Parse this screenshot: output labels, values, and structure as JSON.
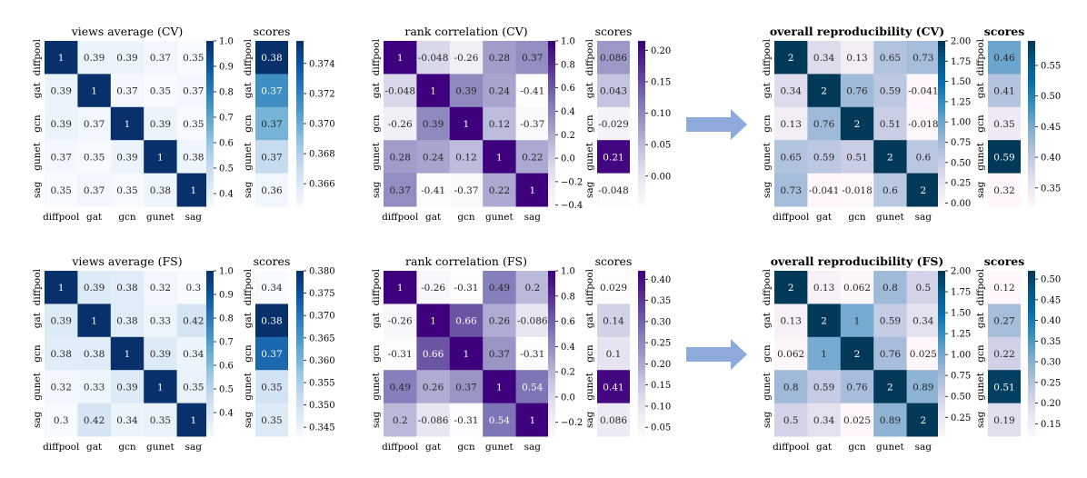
{
  "chart_data": [
    {
      "type": "heatmap",
      "title": "views average (CV)",
      "cmap": "Blues",
      "categories": [
        "diffpool",
        "gat",
        "gcn",
        "gunet",
        "sag"
      ],
      "labels": [
        [
          "1",
          "0.39",
          "0.39",
          "0.37",
          "0.35"
        ],
        [
          "0.39",
          "1",
          "0.37",
          "0.35",
          "0.37"
        ],
        [
          "0.39",
          "0.37",
          "1",
          "0.39",
          "0.35"
        ],
        [
          "0.37",
          "0.35",
          "0.39",
          "1",
          "0.38"
        ],
        [
          "0.35",
          "0.37",
          "0.35",
          "0.38",
          "1"
        ]
      ],
      "values": [
        [
          1,
          0.39,
          0.39,
          0.37,
          0.35
        ],
        [
          0.39,
          1,
          0.37,
          0.35,
          0.37
        ],
        [
          0.39,
          0.37,
          1,
          0.39,
          0.35
        ],
        [
          0.37,
          0.35,
          0.39,
          1,
          0.38
        ],
        [
          0.35,
          0.37,
          0.35,
          0.38,
          1
        ]
      ],
      "vmin": 0.35,
      "vmax": 1.0,
      "colorbar_ticks": [
        "0.4",
        "0.5",
        "0.6",
        "0.7",
        "0.8",
        "0.9",
        "1.0"
      ],
      "scores": {
        "title": "scores",
        "labels": [
          "0.38",
          "0.37",
          "0.37",
          "0.37",
          "0.36"
        ],
        "values": [
          0.3755,
          0.3715,
          0.3697,
          0.3672,
          0.3649
        ],
        "vmin": 0.3645,
        "vmax": 0.3755,
        "colorbar_ticks": [
          "0.366",
          "0.368",
          "0.370",
          "0.372",
          "0.374"
        ]
      }
    },
    {
      "type": "heatmap",
      "title": "rank correlation (CV)",
      "cmap": "Purples",
      "categories": [
        "diffpool",
        "gat",
        "gcn",
        "gunet",
        "sag"
      ],
      "labels": [
        [
          "1",
          "-0.048",
          "-0.26",
          "0.28",
          "0.37"
        ],
        [
          "-0.048",
          "1",
          "0.39",
          "0.24",
          "-0.41"
        ],
        [
          "-0.26",
          "0.39",
          "1",
          "0.12",
          "-0.37"
        ],
        [
          "0.28",
          "0.24",
          "0.12",
          "1",
          "0.22"
        ],
        [
          "0.37",
          "-0.41",
          "-0.37",
          "0.22",
          "1"
        ]
      ],
      "values": [
        [
          1,
          -0.048,
          -0.26,
          0.28,
          0.37
        ],
        [
          -0.048,
          1,
          0.39,
          0.24,
          -0.41
        ],
        [
          -0.26,
          0.39,
          1,
          0.12,
          -0.37
        ],
        [
          0.28,
          0.24,
          0.12,
          1,
          0.22
        ],
        [
          0.37,
          -0.41,
          -0.37,
          0.22,
          1
        ]
      ],
      "vmin": -0.41,
      "vmax": 1.0,
      "colorbar_ticks": [
        "−0.4",
        "−0.2",
        "0.0",
        "0.2",
        "0.4",
        "0.6",
        "0.8",
        "1.0"
      ],
      "scores": {
        "title": "scores",
        "labels": [
          "0.086",
          "0.043",
          "-0.029",
          "0.21",
          "-0.048"
        ],
        "values": [
          0.086,
          0.043,
          -0.029,
          0.21,
          -0.048
        ],
        "vmin": -0.048,
        "vmax": 0.215,
        "colorbar_ticks": [
          "0.00",
          "0.05",
          "0.10",
          "0.15",
          "0.20"
        ]
      }
    },
    {
      "type": "heatmap",
      "title": "overall reproducibility (CV)",
      "cmap": "PuBu",
      "categories": [
        "diffpool",
        "gat",
        "gcn",
        "gunet",
        "sag"
      ],
      "labels": [
        [
          "2",
          "0.34",
          "0.13",
          "0.65",
          "0.73"
        ],
        [
          "0.34",
          "2",
          "0.76",
          "0.59",
          "-0.041"
        ],
        [
          "0.13",
          "0.76",
          "2",
          "0.51",
          "-0.018"
        ],
        [
          "0.65",
          "0.59",
          "0.51",
          "2",
          "0.6"
        ],
        [
          "0.73",
          "-0.041",
          "-0.018",
          "0.6",
          "2"
        ]
      ],
      "values": [
        [
          2,
          0.34,
          0.13,
          0.65,
          0.73
        ],
        [
          0.34,
          2,
          0.76,
          0.59,
          -0.041
        ],
        [
          0.13,
          0.76,
          2,
          0.51,
          -0.018
        ],
        [
          0.65,
          0.59,
          0.51,
          2,
          0.6
        ],
        [
          0.73,
          -0.041,
          -0.018,
          0.6,
          2
        ]
      ],
      "vmin": -0.041,
      "vmax": 2.0,
      "colorbar_ticks": [
        "0.00",
        "0.25",
        "0.50",
        "0.75",
        "1.00",
        "1.25",
        "1.50",
        "1.75",
        "2.00"
      ],
      "scores": {
        "title": "scores",
        "labels": [
          "0.46",
          "0.41",
          "0.35",
          "0.59",
          "0.32"
        ],
        "values": [
          0.46,
          0.41,
          0.35,
          0.59,
          0.32
        ],
        "vmin": 0.32,
        "vmax": 0.59,
        "colorbar_ticks": [
          "0.35",
          "0.40",
          "0.45",
          "0.50",
          "0.55"
        ]
      }
    },
    {
      "type": "heatmap",
      "title": "views average (FS)",
      "cmap": "Blues",
      "categories": [
        "diffpool",
        "gat",
        "gcn",
        "gunet",
        "sag"
      ],
      "labels": [
        [
          "1",
          "0.39",
          "0.38",
          "0.32",
          "0.3"
        ],
        [
          "0.39",
          "1",
          "0.38",
          "0.33",
          "0.42"
        ],
        [
          "0.38",
          "0.38",
          "1",
          "0.39",
          "0.34"
        ],
        [
          "0.32",
          "0.33",
          "0.39",
          "1",
          "0.35"
        ],
        [
          "0.3",
          "0.42",
          "0.34",
          "0.35",
          "1"
        ]
      ],
      "values": [
        [
          1,
          0.39,
          0.38,
          0.32,
          0.3
        ],
        [
          0.39,
          1,
          0.38,
          0.33,
          0.42
        ],
        [
          0.38,
          0.38,
          1,
          0.39,
          0.34
        ],
        [
          0.32,
          0.33,
          0.39,
          1,
          0.35
        ],
        [
          0.3,
          0.42,
          0.34,
          0.35,
          1
        ]
      ],
      "vmin": 0.3,
      "vmax": 1.0,
      "colorbar_ticks": [
        "0.4",
        "0.5",
        "0.6",
        "0.7",
        "0.8",
        "0.9",
        "1.0"
      ],
      "scores": {
        "title": "scores",
        "labels": [
          "0.34",
          "0.38",
          "0.37",
          "0.35",
          "0.35"
        ],
        "values": [
          0.343,
          0.38,
          0.372,
          0.35,
          0.348
        ],
        "vmin": 0.343,
        "vmax": 0.38,
        "colorbar_ticks": [
          "0.345",
          "0.350",
          "0.355",
          "0.360",
          "0.365",
          "0.370",
          "0.375",
          "0.380"
        ]
      }
    },
    {
      "type": "heatmap",
      "title": "rank correlation (FS)",
      "cmap": "Purples",
      "categories": [
        "diffpool",
        "gat",
        "gcn",
        "gunet",
        "sag"
      ],
      "labels": [
        [
          "1",
          "-0.26",
          "-0.31",
          "0.49",
          "0.2"
        ],
        [
          "-0.26",
          "1",
          "0.66",
          "0.26",
          "-0.086"
        ],
        [
          "-0.31",
          "0.66",
          "1",
          "0.37",
          "-0.31"
        ],
        [
          "0.49",
          "0.26",
          "0.37",
          "1",
          "0.54"
        ],
        [
          "0.2",
          "-0.086",
          "-0.31",
          "0.54",
          "1"
        ]
      ],
      "values": [
        [
          1,
          -0.26,
          -0.31,
          0.49,
          0.2
        ],
        [
          -0.26,
          1,
          0.66,
          0.26,
          -0.086
        ],
        [
          -0.31,
          0.66,
          1,
          0.37,
          -0.31
        ],
        [
          0.49,
          0.26,
          0.37,
          1,
          0.54
        ],
        [
          0.2,
          -0.086,
          -0.31,
          0.54,
          1
        ]
      ],
      "vmin": -0.31,
      "vmax": 1.0,
      "colorbar_ticks": [
        "−0.2",
        "0.0",
        "0.2",
        "0.4",
        "0.6",
        "0.8",
        "1.0"
      ],
      "scores": {
        "title": "scores",
        "labels": [
          "0.029",
          "0.14",
          "0.1",
          "0.41",
          "0.086"
        ],
        "values": [
          0.029,
          0.14,
          0.1,
          0.41,
          0.086
        ],
        "vmin": 0.029,
        "vmax": 0.42,
        "colorbar_ticks": [
          "0.05",
          "0.10",
          "0.15",
          "0.20",
          "0.25",
          "0.30",
          "0.35",
          "0.40"
        ]
      }
    },
    {
      "type": "heatmap",
      "title": "overall reproducibility (FS)",
      "cmap": "PuBu",
      "categories": [
        "diffpool",
        "gat",
        "gcn",
        "gunet",
        "sag"
      ],
      "labels": [
        [
          "2",
          "0.13",
          "0.062",
          "0.8",
          "0.5"
        ],
        [
          "0.13",
          "2",
          "1",
          "0.59",
          "0.34"
        ],
        [
          "0.062",
          "1",
          "2",
          "0.76",
          "0.025"
        ],
        [
          "0.8",
          "0.59",
          "0.76",
          "2",
          "0.89"
        ],
        [
          "0.5",
          "0.34",
          "0.025",
          "0.89",
          "2"
        ]
      ],
      "values": [
        [
          2,
          0.13,
          0.062,
          0.8,
          0.5
        ],
        [
          0.13,
          2,
          1,
          0.59,
          0.34
        ],
        [
          0.062,
          1,
          2,
          0.76,
          0.025
        ],
        [
          0.8,
          0.59,
          0.76,
          2,
          0.89
        ],
        [
          0.5,
          0.34,
          0.025,
          0.89,
          2
        ]
      ],
      "vmin": 0.025,
      "vmax": 2.0,
      "colorbar_ticks": [
        "0.25",
        "0.50",
        "0.75",
        "1.00",
        "1.25",
        "1.50",
        "1.75",
        "2.00"
      ],
      "scores": {
        "title": "scores",
        "labels": [
          "0.12",
          "0.27",
          "0.22",
          "0.51",
          "0.19"
        ],
        "values": [
          0.12,
          0.27,
          0.22,
          0.51,
          0.19
        ],
        "vmin": 0.12,
        "vmax": 0.52,
        "colorbar_ticks": [
          "0.15",
          "0.20",
          "0.25",
          "0.30",
          "0.35",
          "0.40",
          "0.45",
          "0.50"
        ]
      }
    }
  ],
  "colors": {
    "Blues": [
      "#f7fbff",
      "#deebf7",
      "#c6dbef",
      "#9ecae1",
      "#6baed6",
      "#4292c6",
      "#2171b5",
      "#08519c",
      "#08306b"
    ],
    "Purples": [
      "#fcfbfd",
      "#efedf5",
      "#dadaeb",
      "#bcbddc",
      "#9e9ac8",
      "#807dba",
      "#6a51a3",
      "#54278f",
      "#3f007d"
    ],
    "PuBu": [
      "#fff7fb",
      "#ece7f2",
      "#d0d1e6",
      "#a6bddb",
      "#74a9cf",
      "#3690c0",
      "#0570b0",
      "#045a8d",
      "#023858"
    ],
    "arrow": "#8eaadb"
  }
}
